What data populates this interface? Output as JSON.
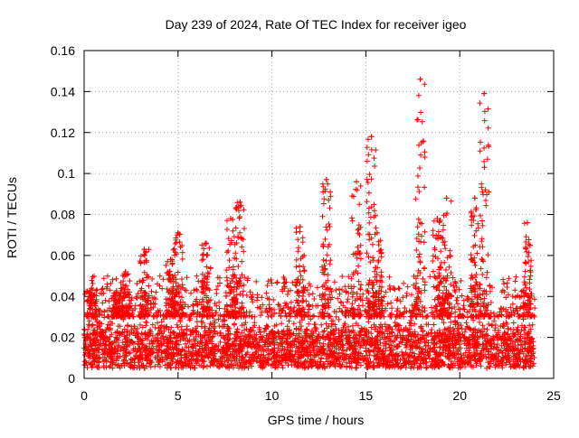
{
  "chart_data": {
    "type": "scatter",
    "title": "Day 239 of 2024, Rate Of TEC Index for receiver igeo",
    "xlabel": "GPS time / hours",
    "ylabel": "ROTI / TECUs",
    "xlim": [
      0,
      25
    ],
    "ylim": [
      0,
      0.16
    ],
    "x_ticks": [
      0,
      5,
      10,
      15,
      20,
      25
    ],
    "x_tick_labels": [
      "0",
      "5",
      "10",
      "15",
      "20",
      "25"
    ],
    "y_ticks": [
      0,
      0.02,
      0.04,
      0.06,
      0.08,
      0.1,
      0.12,
      0.14,
      0.16
    ],
    "y_tick_labels": [
      "0",
      "0.02",
      "0.04",
      "0.06",
      "0.08",
      "0.1",
      "0.12",
      "0.14",
      "0.16"
    ],
    "grid": true,
    "marker": "+",
    "marker_color": "#ff0000",
    "series": [
      {
        "name": "ROTI",
        "x_range_hours": [
          0,
          24
        ],
        "baseline_mean": 0.015,
        "dense_band": [
          0.005,
          0.03
        ],
        "peaks": [
          {
            "x": 0.4,
            "y": 0.044
          },
          {
            "x": 1.7,
            "y": 0.042
          },
          {
            "x": 2.2,
            "y": 0.052
          },
          {
            "x": 3.2,
            "y": 0.063
          },
          {
            "x": 4.6,
            "y": 0.058
          },
          {
            "x": 5.0,
            "y": 0.071
          },
          {
            "x": 6.5,
            "y": 0.066
          },
          {
            "x": 7.8,
            "y": 0.078
          },
          {
            "x": 8.3,
            "y": 0.086
          },
          {
            "x": 11.5,
            "y": 0.074
          },
          {
            "x": 12.9,
            "y": 0.097
          },
          {
            "x": 14.5,
            "y": 0.096
          },
          {
            "x": 15.3,
            "y": 0.118
          },
          {
            "x": 15.6,
            "y": 0.071
          },
          {
            "x": 17.9,
            "y": 0.146
          },
          {
            "x": 18.8,
            "y": 0.078
          },
          {
            "x": 19.3,
            "y": 0.088
          },
          {
            "x": 20.8,
            "y": 0.088
          },
          {
            "x": 21.3,
            "y": 0.139
          },
          {
            "x": 23.6,
            "y": 0.076
          }
        ]
      }
    ]
  }
}
